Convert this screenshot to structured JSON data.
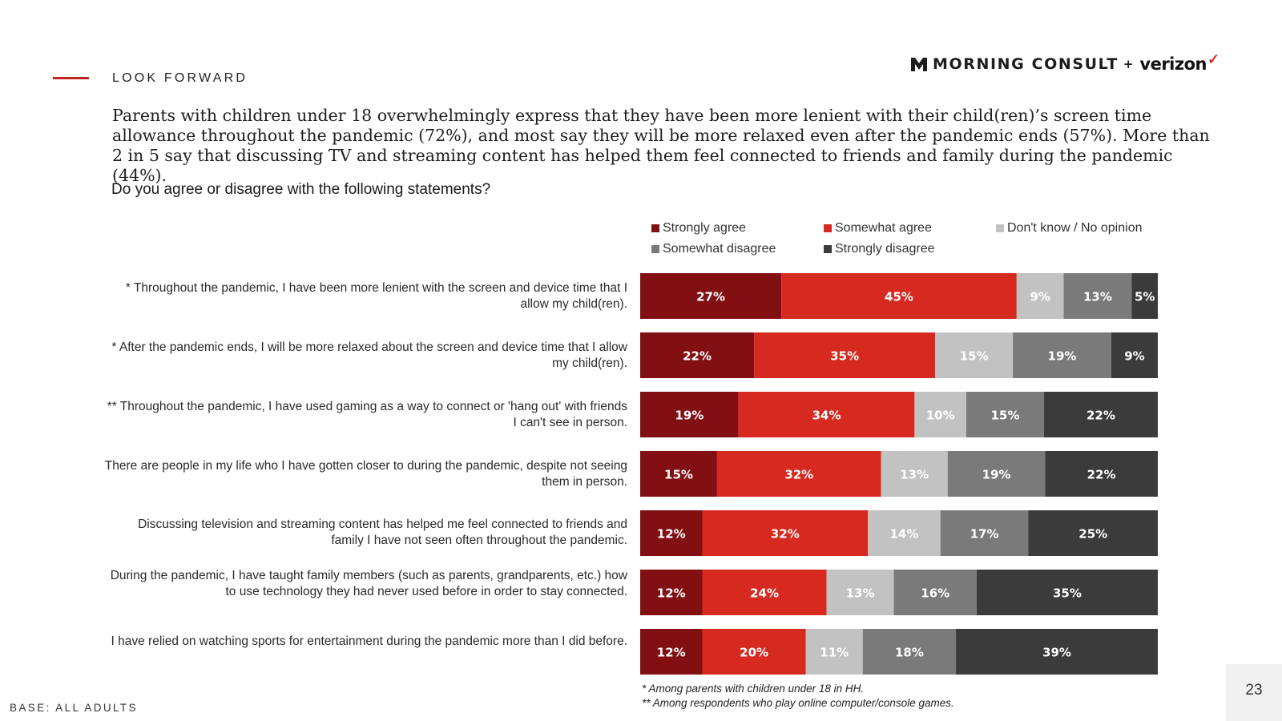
{
  "header": {
    "section_label": "LOOK FORWARD",
    "logo": {
      "brand1": "MORNING CONSULT",
      "plus": "+",
      "brand2": "verizon"
    },
    "lede": "Parents with children under 18 overwhelmingly express that they have been more lenient with their child(ren)’s screen time allowance throughout the pandemic (72%), and most say they will be more relaxed even after the pandemic ends (57%). More than 2 in 5 say that discussing TV and streaming content has helped them feel connected to friends and family during the pandemic (44%).",
    "question": "Do you agree or disagree with the following statements?"
  },
  "legend": [
    {
      "label": "Strongly agree",
      "color": "#820f12"
    },
    {
      "label": "Somewhat agree",
      "color": "#d62a20"
    },
    {
      "label": "Don't know / No opinion",
      "color": "#c2c2c2"
    },
    {
      "label": "Somewhat disagree",
      "color": "#7a7a7a"
    },
    {
      "label": "Strongly disagree",
      "color": "#3b3b3b"
    }
  ],
  "chart_data": {
    "type": "bar",
    "orientation": "horizontal",
    "stacked": true,
    "title": "Do you agree or disagree with the following statements?",
    "categories": [
      "* Throughout the pandemic, I have been more lenient with the screen and device time that I allow my child(ren).",
      "* After the pandemic ends, I will be more relaxed about the screen and device time that I allow my child(ren).",
      "** Throughout the pandemic, I have used gaming as a way to connect or 'hang out' with friends I can't see in person.",
      "There are people in my life who I have gotten closer to during the pandemic, despite not seeing them in person.",
      "Discussing television and streaming content has helped me feel connected to friends and family I have not seen often throughout the pandemic.",
      "During the pandemic, I have taught family members (such as parents, grandparents, etc.) how to use technology they had never used before in order to stay connected.",
      "I have relied on watching sports for entertainment during the pandemic more than I did before."
    ],
    "series": [
      {
        "name": "Strongly agree",
        "color": "#820f12",
        "values": [
          27,
          22,
          19,
          15,
          12,
          12,
          12
        ]
      },
      {
        "name": "Somewhat agree",
        "color": "#d62a20",
        "values": [
          45,
          35,
          34,
          32,
          32,
          24,
          20
        ]
      },
      {
        "name": "Don't know / No opinion",
        "color": "#c2c2c2",
        "values": [
          9,
          15,
          10,
          13,
          14,
          13,
          11
        ]
      },
      {
        "name": "Somewhat disagree",
        "color": "#7a7a7a",
        "values": [
          13,
          19,
          15,
          19,
          17,
          16,
          18
        ]
      },
      {
        "name": "Strongly disagree",
        "color": "#3b3b3b",
        "values": [
          5,
          9,
          22,
          22,
          25,
          35,
          39
        ]
      }
    ],
    "value_suffix": "%",
    "legend_position": "top"
  },
  "footnotes": [
    "* Among parents with children under 18 in HH.",
    "** Among respondents who play online computer/console games."
  ],
  "base": "BASE: ALL ADULTS",
  "page_number": "23"
}
